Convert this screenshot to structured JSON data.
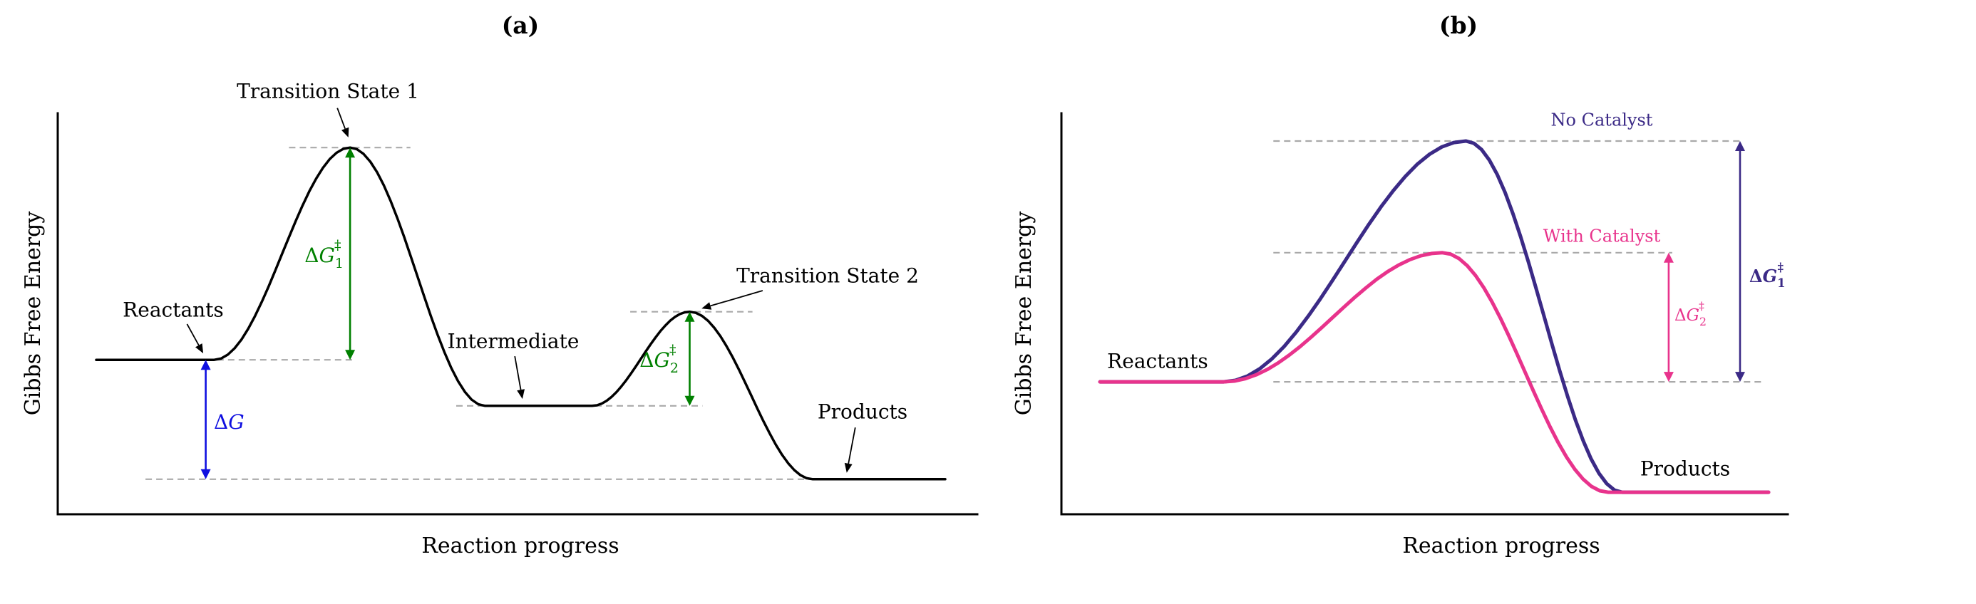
{
  "panel_a": {
    "title": "(a)",
    "xlabel": "Reaction progress",
    "ylabel": "Gibbs Free Energy",
    "annotations": {
      "transition_state_1": "Transition State 1",
      "reactants": "Reactants",
      "intermediate": "Intermediate",
      "transition_state_2": "Transition State 2",
      "products": "Products"
    },
    "arrow_labels": {
      "dg1": {
        "delta": "Δ",
        "symbol": "G",
        "sub": "1",
        "sup": "‡",
        "color": "#008000"
      },
      "dg": {
        "delta": "Δ",
        "symbol": "G",
        "color": "#0f0fe0"
      },
      "dg2": {
        "delta": "Δ",
        "symbol": "G",
        "sub": "2",
        "sup": "‡",
        "color": "#008000"
      }
    }
  },
  "panel_b": {
    "title": "(b)",
    "xlabel": "Reaction progress",
    "ylabel": "Gibbs Free Energy",
    "annotations": {
      "reactants": "Reactants",
      "products": "Products"
    },
    "curve_labels": {
      "no_catalyst": "No Catalyst",
      "with_catalyst": "With Catalyst"
    },
    "arrow_labels": {
      "dg1": {
        "delta": "Δ",
        "symbol": "G",
        "sub": "1",
        "sup": "‡",
        "color": "#3b2a86"
      },
      "dg2": {
        "delta": "Δ",
        "symbol": "G",
        "sub": "2",
        "sup": "‡",
        "color": "#e8338c"
      }
    }
  },
  "chart_data": [
    {
      "id": "a",
      "type": "line",
      "title": "(a)",
      "xlabel": "Reaction progress",
      "ylabel": "Gibbs Free Energy",
      "x_range": [
        0,
        10
      ],
      "y_range": [
        0,
        10
      ],
      "grid": false,
      "legend": "none",
      "guide_color": "#a9a9a9",
      "energy_levels": {
        "reactants": 3.79,
        "transition_state_1": 9.0,
        "intermediate": 2.66,
        "transition_state_2": 4.97,
        "products": 0.86
      },
      "series": [
        {
          "name": "two-step reaction profile",
          "color": "#000000",
          "width": 3.5,
          "x": [
            0,
            1.39,
            2.99,
            4.58,
            5.84,
            6.99,
            8.44,
            10
          ],
          "y": [
            3.79,
            3.79,
            9.0,
            2.66,
            2.66,
            4.97,
            0.86,
            0.86
          ]
        }
      ],
      "dashed_levels": [
        {
          "y": 9.0,
          "x1": 2.27,
          "x2": 3.7
        },
        {
          "y": 3.79,
          "x1": 0.04,
          "x2": 3.06
        },
        {
          "y": 2.66,
          "x1": 4.24,
          "x2": 7.14
        },
        {
          "y": 4.97,
          "x1": 6.29,
          "x2": 7.73
        },
        {
          "y": 0.86,
          "x1": 0.58,
          "x2": 8.61
        }
      ],
      "measure_arrows": [
        {
          "name": "activation-energy-step-1",
          "x": 2.99,
          "y1": 9.0,
          "y2": 3.79,
          "color": "#008000"
        },
        {
          "name": "overall-delta-g",
          "x": 1.29,
          "y1": 3.79,
          "y2": 0.86,
          "color": "#0f0fe0"
        },
        {
          "name": "activation-energy-step-2",
          "x": 6.99,
          "y1": 4.97,
          "y2": 2.66,
          "color": "#008000"
        }
      ],
      "pointer_arrows": [
        {
          "x1": 2.84,
          "y1": 9.97,
          "x2": 2.97,
          "y2": 9.25
        },
        {
          "x1": 1.07,
          "y1": 4.67,
          "x2": 1.26,
          "y2": 3.95
        },
        {
          "x1": 4.93,
          "y1": 3.88,
          "x2": 5.02,
          "y2": 2.83
        },
        {
          "x1": 7.85,
          "y1": 5.49,
          "x2": 7.13,
          "y2": 5.05
        },
        {
          "x1": 8.94,
          "y1": 2.13,
          "x2": 8.84,
          "y2": 1.02
        }
      ]
    },
    {
      "id": "b",
      "type": "line",
      "title": "(b)",
      "xlabel": "Reaction progress",
      "ylabel": "Gibbs Free Energy",
      "x_range": [
        0,
        10
      ],
      "y_range": [
        0,
        10
      ],
      "grid": false,
      "legend": "labels-on-guides",
      "guide_color": "#a9a9a9",
      "energy_levels": {
        "reactants": 3.25,
        "uncatalyzed_barrier": 9.16,
        "catalyzed_barrier": 6.42,
        "products": 0.54
      },
      "series": [
        {
          "name": "No Catalyst",
          "color": "#3b2a86",
          "width": 5,
          "x": [
            0.54,
            2.27,
            5.67,
            7.86,
            9.91
          ],
          "y": [
            3.25,
            3.25,
            9.16,
            0.54,
            0.54
          ]
        },
        {
          "name": "With Catalyst",
          "color": "#e8338c",
          "width": 5,
          "x": [
            0.54,
            2.27,
            5.34,
            7.66,
            9.91
          ],
          "y": [
            3.25,
            3.25,
            6.42,
            0.54,
            0.54
          ]
        }
      ],
      "dashed_levels": [
        {
          "y": 9.16,
          "x1": 2.97,
          "x2": 9.55
        },
        {
          "y": 6.42,
          "x1": 2.97,
          "x2": 8.56
        },
        {
          "y": 3.25,
          "x1": 2.97,
          "x2": 9.82
        }
      ],
      "measure_arrows": [
        {
          "name": "activation-energy-uncatalyzed",
          "x": 9.51,
          "y1": 9.16,
          "y2": 3.25,
          "color": "#3b2a86"
        },
        {
          "name": "activation-energy-catalyzed",
          "x": 8.51,
          "y1": 6.42,
          "y2": 3.25,
          "color": "#e8338c"
        }
      ],
      "pointer_arrows": []
    }
  ]
}
